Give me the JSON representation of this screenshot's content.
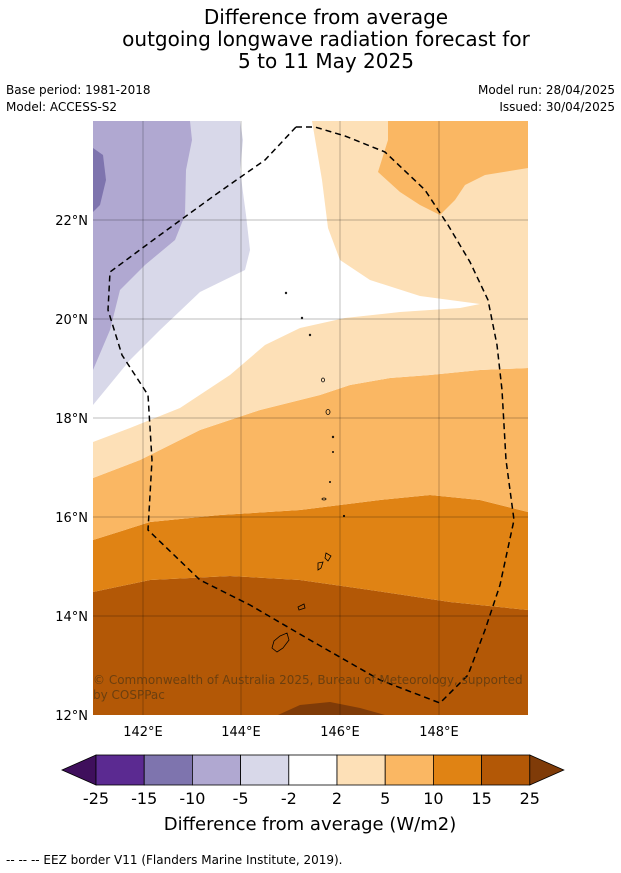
{
  "title": {
    "line1": "Difference from average",
    "line2": "outgoing longwave radiation forecast for",
    "line3": "5 to 11 May 2025"
  },
  "meta": {
    "base_period": "Base period: 1981-2018",
    "model": "Model: ACCESS-S2",
    "model_run": "Model run: 28/04/2025",
    "issued": "Issued: 30/04/2025"
  },
  "map": {
    "lat_labels": [
      "22°N",
      "20°N",
      "18°N",
      "16°N",
      "14°N",
      "12°N"
    ],
    "lon_labels": [
      "142°E",
      "144°E",
      "146°E",
      "148°E"
    ],
    "copyright": "© Commonwealth of Australia 2025, Bureau of Meteorology, supported",
    "copyright_line2": "by COSPPac",
    "extent": {
      "lon_min": 141.0,
      "lon_max": 149.75,
      "lat_min": 12.0,
      "lat_max": 24.0
    }
  },
  "colorbar": {
    "tick_labels": [
      "-25",
      "-15",
      "-10",
      "-5",
      "-2",
      "2",
      "5",
      "10",
      "15",
      "25"
    ],
    "colors": [
      "#3f0f5c",
      "#5b2a91",
      "#7e74ae",
      "#b0a8d1",
      "#d8d8e9",
      "#ffffff",
      "#fde0b7",
      "#fab763",
      "#e08314",
      "#b35806",
      "#7f3b08"
    ],
    "label": "Difference from average (W/m2)"
  },
  "footer": {
    "legend_text": "--  --  -- EEZ border V11 (Flanders Marine Institute, 2019)."
  }
}
